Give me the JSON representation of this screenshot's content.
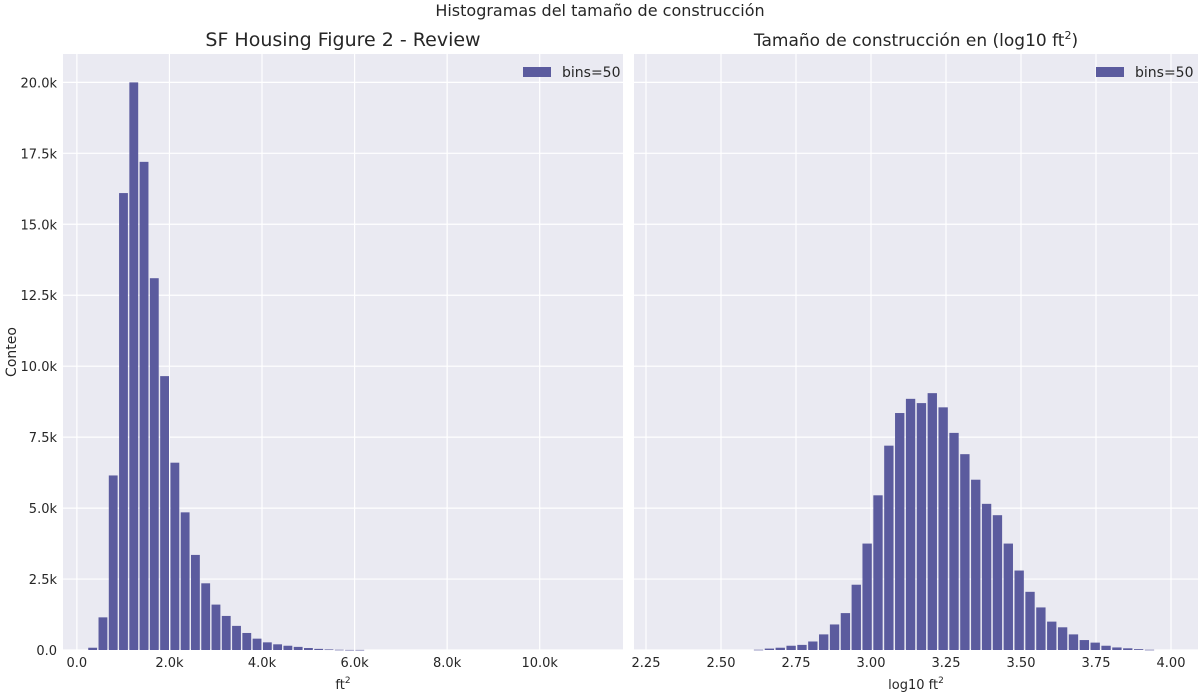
{
  "figure": {
    "suptitle": "Histogramas del tamaño de construcción"
  },
  "colors": {
    "background": "#EAEAF2",
    "grid": "#FFFFFF",
    "bar": "#5B5B9E",
    "text": "#262626"
  },
  "chart_data": [
    {
      "type": "bar",
      "title": "SF Housing Figure 2 - Review",
      "xlabel_base": "ft",
      "xlabel_sup": "2",
      "ylabel": "Conteo",
      "xlim": [
        -300,
        11800
      ],
      "ylim": [
        0,
        21000
      ],
      "xticks": [
        0,
        2000,
        4000,
        6000,
        8000,
        10000
      ],
      "xtick_labels": [
        "0.0",
        "2.0k",
        "4.0k",
        "6.0k",
        "8.0k",
        "10.0k"
      ],
      "yticks": [
        0,
        2500,
        5000,
        7500,
        10000,
        12500,
        15000,
        17500,
        20000
      ],
      "ytick_labels": [
        "0.0",
        "2.5k",
        "5.0k",
        "7.5k",
        "10.0k",
        "12.5k",
        "15.0k",
        "17.5k",
        "20.0k"
      ],
      "grid": true,
      "legend": {
        "label": "bins=50",
        "position": "top-right"
      },
      "bin_start": 230,
      "bin_width": 222,
      "values": [
        80,
        1150,
        6150,
        16100,
        20000,
        17200,
        13100,
        9650,
        6600,
        4850,
        3350,
        2350,
        1600,
        1200,
        850,
        600,
        400,
        270,
        200,
        150,
        110,
        70,
        40,
        20,
        10,
        5,
        5,
        0,
        0,
        0,
        0,
        0,
        0,
        0,
        0,
        0,
        0,
        0,
        0,
        0,
        0,
        0,
        0,
        0,
        0,
        0,
        0,
        0,
        0,
        0
      ]
    },
    {
      "type": "bar",
      "title_base": "Tamaño de construcción en (log10 ft",
      "title_sup": "2",
      "title_end": ")",
      "xlabel_base": "log10 ft",
      "xlabel_sup": "2",
      "ylabel": "",
      "xlim": [
        2.21,
        4.09
      ],
      "ylim": [
        0,
        21000
      ],
      "xticks": [
        2.25,
        2.5,
        2.75,
        3.0,
        3.25,
        3.5,
        3.75,
        4.0
      ],
      "xtick_labels": [
        "2.25",
        "2.50",
        "2.75",
        "3.00",
        "3.25",
        "3.50",
        "3.75",
        "4.00"
      ],
      "yticks": [
        0,
        2500,
        5000,
        7500,
        10000,
        12500,
        15000,
        17500,
        20000
      ],
      "grid": true,
      "legend": {
        "label": "bins=50",
        "position": "top-right"
      },
      "bin_start": 2.245,
      "bin_width": 0.0362,
      "values": [
        0,
        0,
        0,
        0,
        0,
        0,
        0,
        0,
        0,
        0,
        10,
        50,
        80,
        150,
        180,
        300,
        550,
        900,
        1300,
        2300,
        3750,
        5450,
        7200,
        8350,
        8850,
        8700,
        9050,
        8550,
        7650,
        6900,
        6000,
        5150,
        4750,
        3750,
        2800,
        2050,
        1500,
        1000,
        800,
        550,
        350,
        260,
        150,
        90,
        60,
        30,
        10,
        0,
        0,
        0
      ]
    }
  ]
}
